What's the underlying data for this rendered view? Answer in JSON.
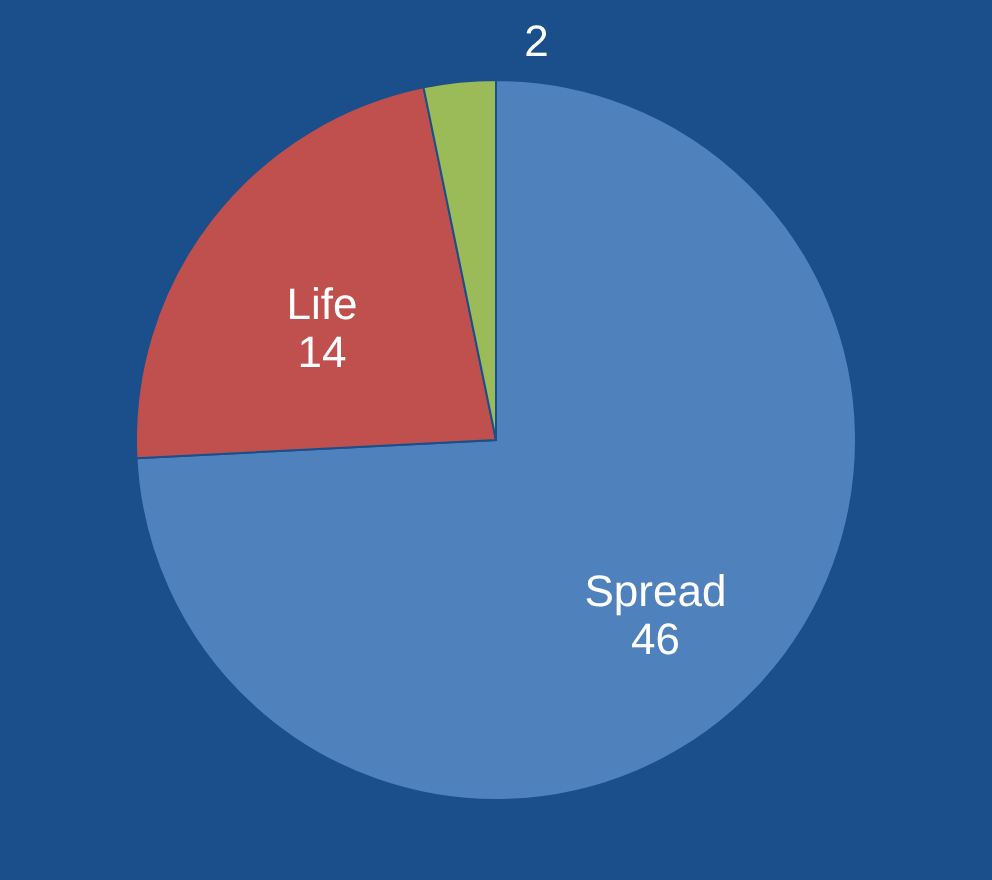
{
  "chart_data": {
    "type": "pie",
    "categories": [
      "Spread",
      "Life",
      null
    ],
    "values": [
      46,
      14,
      2
    ],
    "colors": [
      "#4f81bd",
      "#c0504d",
      "#9bbb59"
    ],
    "data_labels": true
  }
}
